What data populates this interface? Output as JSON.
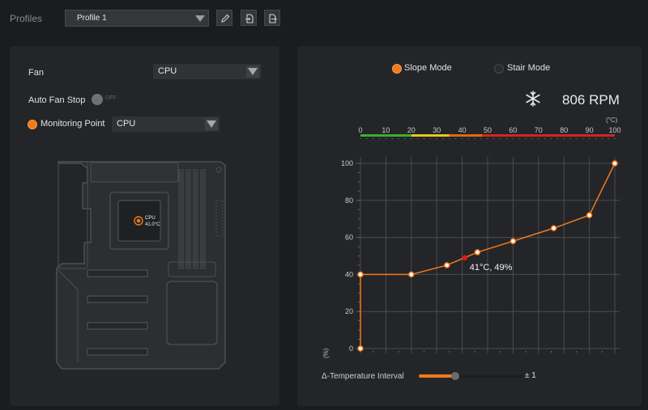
{
  "topbar": {
    "profiles_label": "Profiles",
    "profile_selected": "Profile 1",
    "icons": [
      "pencil-icon",
      "import-icon",
      "export-icon"
    ]
  },
  "left": {
    "fan_label": "Fan",
    "fan_selected": "CPU",
    "auto_fan_stop_label": "Auto Fan Stop",
    "auto_fan_stop_state": "OFF",
    "monitoring_point_label": "Monitoring Point",
    "monitoring_point_selected": "CPU",
    "sensor_label": "CPU",
    "sensor_value": "41.0°C"
  },
  "right": {
    "slope_mode_label": "Slope Mode",
    "stair_mode_label": "Stair Mode",
    "active_mode": "slope",
    "rpm": "806 RPM",
    "temp_unit": "(°C)",
    "percent_unit": "(%)",
    "interval_label": "Δ-Temperature Interval",
    "interval_value": "± 1",
    "interval_slider_level": 0.35
  },
  "colors": {
    "accent": "#f07a1c",
    "panel_bg": "#242528",
    "page_bg": "#1b1c1e"
  },
  "chart_data": {
    "type": "line",
    "x_ticks": [
      "0",
      "10",
      "20",
      "30",
      "40",
      "50",
      "60",
      "70",
      "80",
      "90",
      "100"
    ],
    "y_ticks": [
      "0",
      "20",
      "40",
      "60",
      "80",
      "100"
    ],
    "xlim": [
      0,
      100
    ],
    "ylim": [
      0,
      100
    ],
    "grid": true,
    "points": [
      [
        0,
        0
      ],
      [
        0,
        40
      ],
      [
        20,
        40
      ],
      [
        34,
        45
      ],
      [
        46,
        52
      ],
      [
        60,
        58
      ],
      [
        76,
        65
      ],
      [
        90,
        72
      ],
      [
        100,
        100
      ]
    ],
    "current_point": {
      "x": 41,
      "y": 49,
      "label": "41°C, 49%"
    },
    "temp_scale_colors": [
      "#3fae2c",
      "#e5c91c",
      "#e06a10",
      "#d8241c"
    ]
  }
}
